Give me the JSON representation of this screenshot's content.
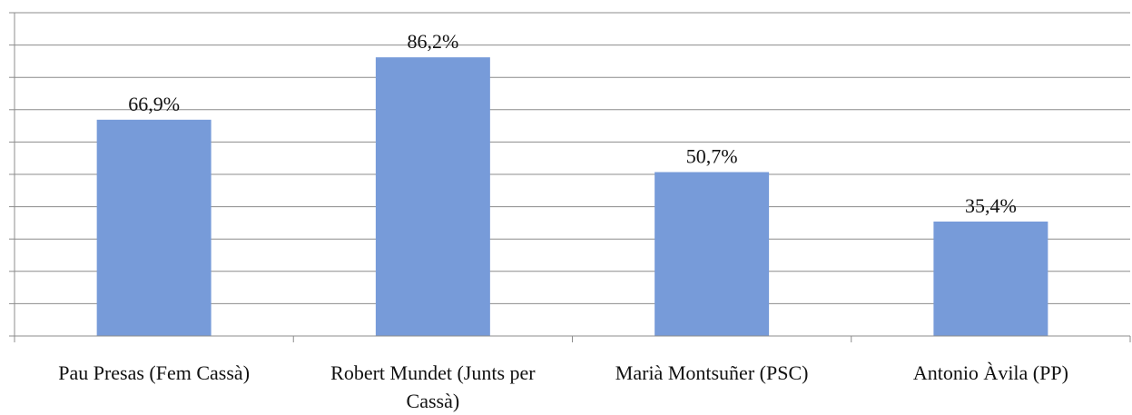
{
  "chart_data": {
    "type": "bar",
    "categories": [
      "Pau Presas (Fem Cassà)",
      "Robert Mundet (Junts per Cassà)",
      "Marià Montsuñer (PSC)",
      "Antonio Àvila (PP)"
    ],
    "values": [
      66.9,
      86.2,
      50.7,
      35.4
    ],
    "value_labels": [
      "66,9%",
      "86,2%",
      "50,7%",
      "35,4%"
    ],
    "color": "#779bd9",
    "ylim": [
      0,
      100
    ],
    "yticks": [
      0,
      10,
      20,
      30,
      40,
      50,
      60,
      70,
      80,
      90,
      100
    ],
    "grid": true
  }
}
